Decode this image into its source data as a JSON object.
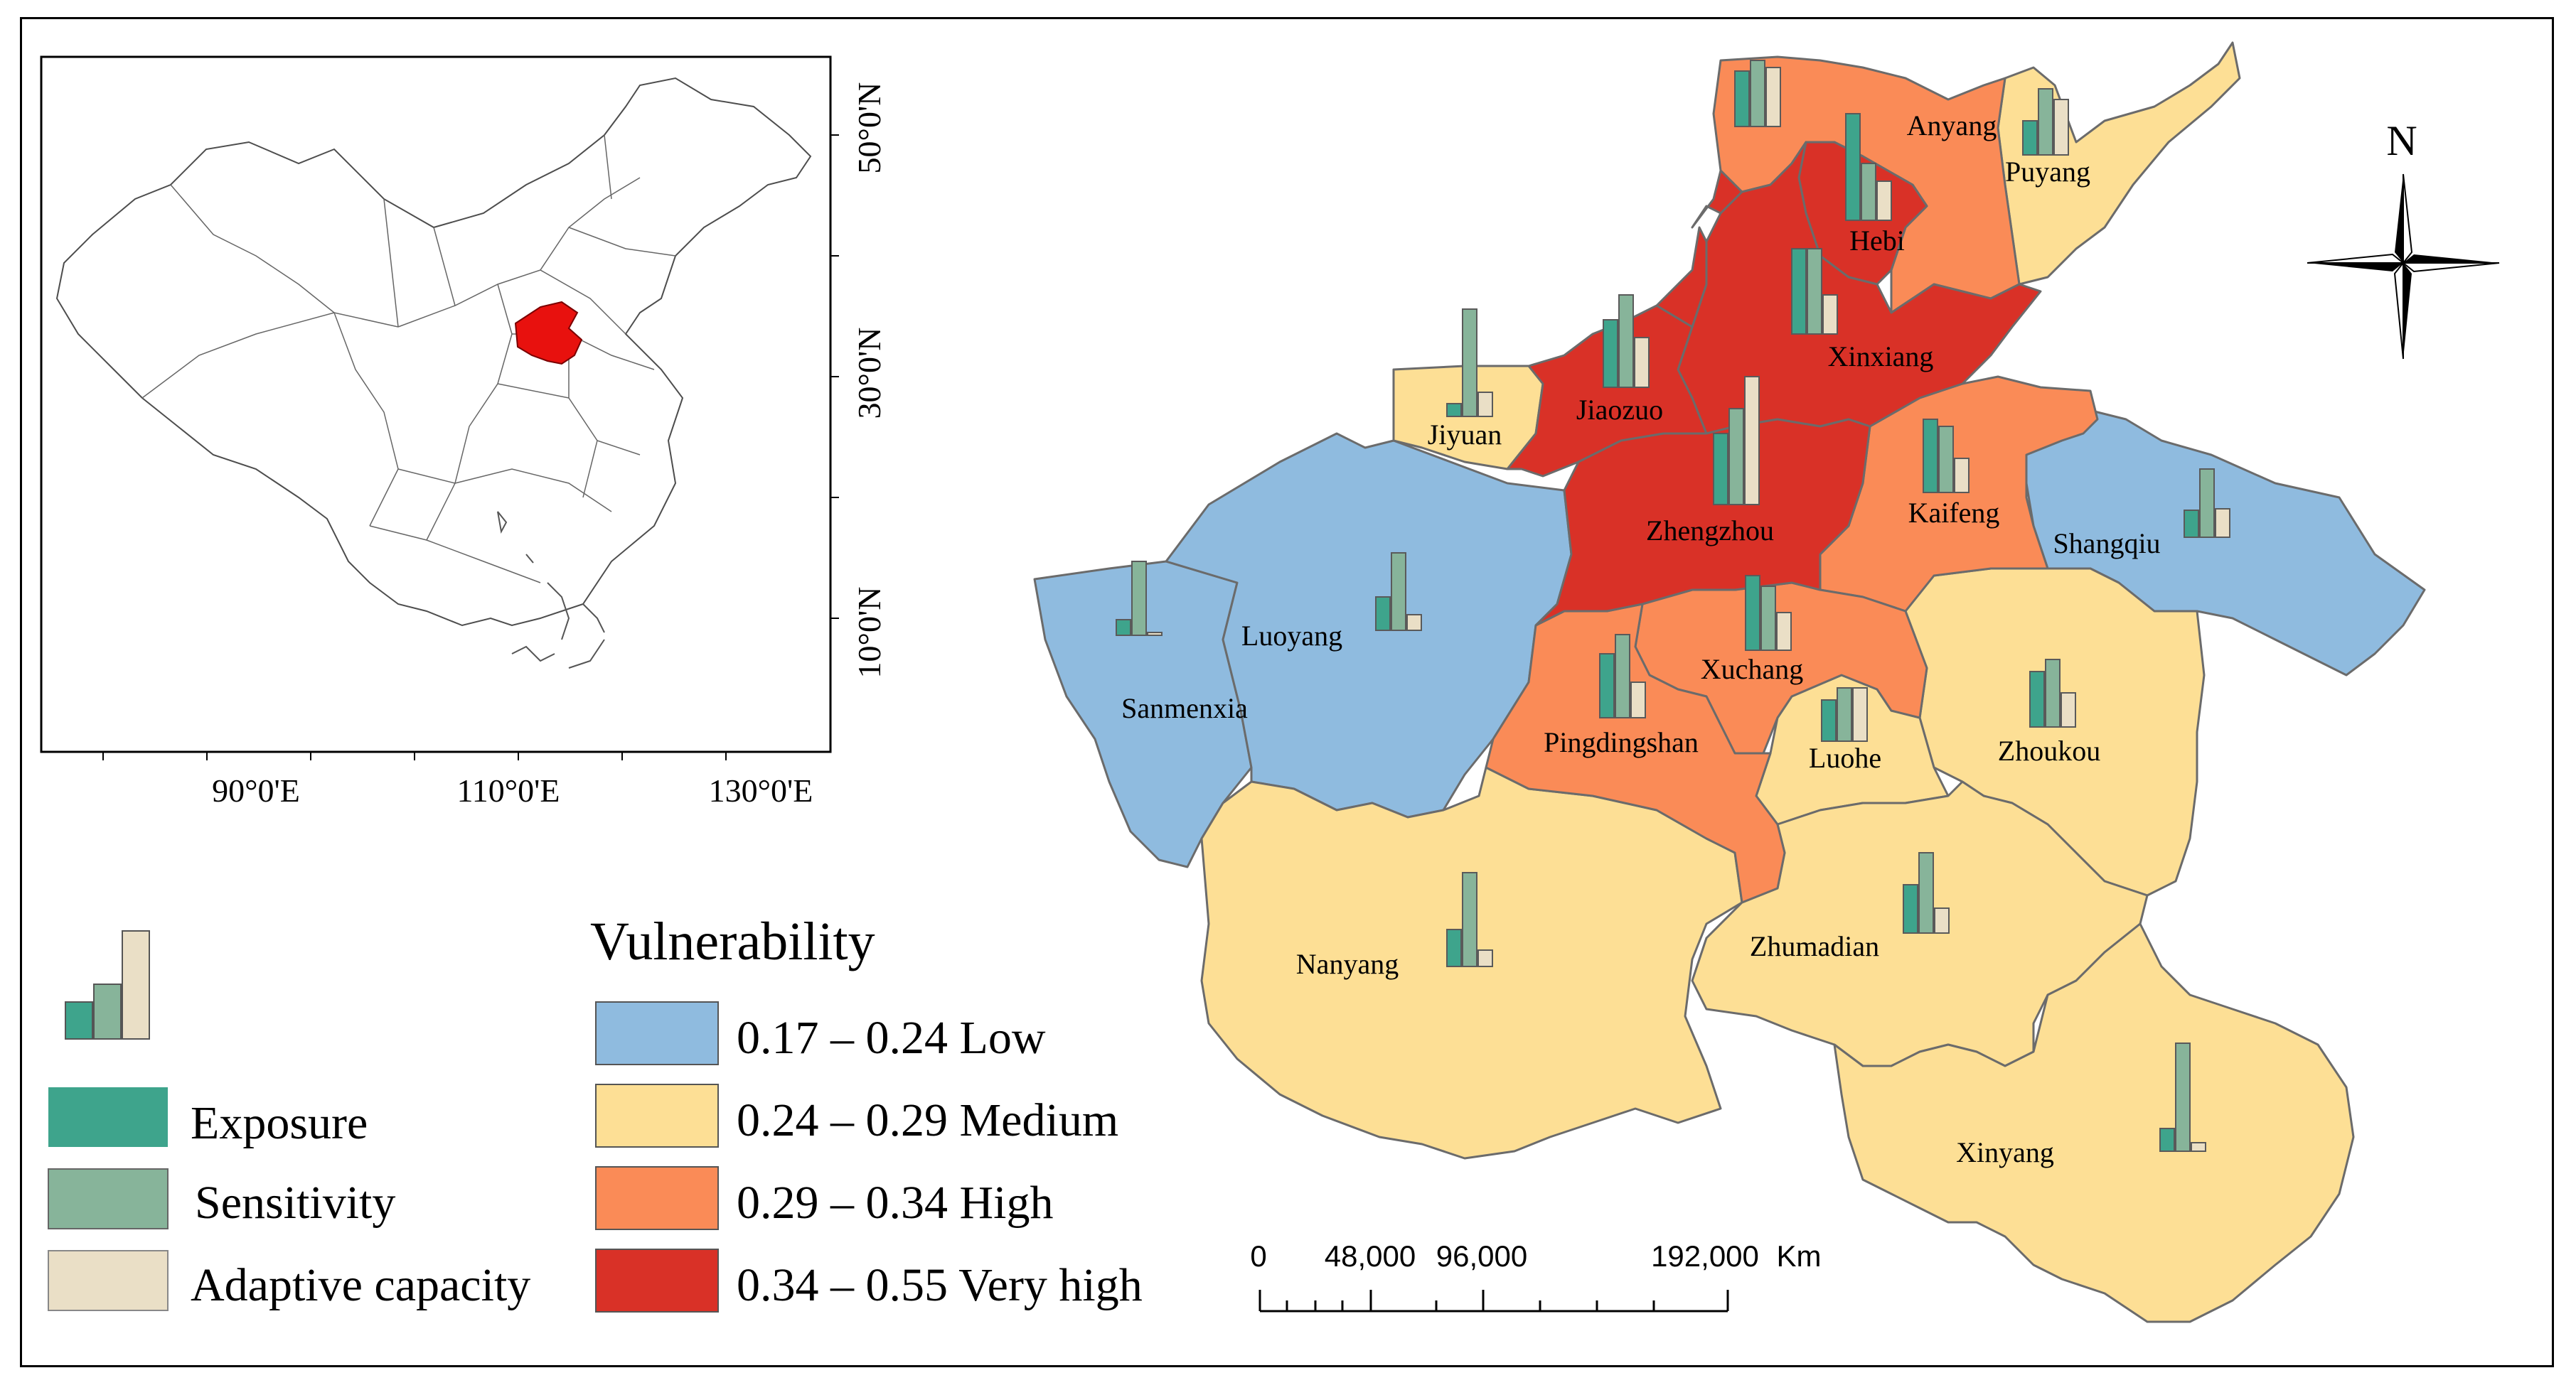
{
  "colors": {
    "low": "#8fbbdf",
    "medium": "#fddf95",
    "high": "#fa8b57",
    "very_high": "#d93127",
    "exposure": "#3ea48c",
    "sensitivity": "#87b49a",
    "adaptive": "#eadfc6",
    "highlight": "#e8110e"
  },
  "inset": {
    "lat_labels": [
      "50°0'N",
      "30°0'N",
      "10°0'N"
    ],
    "lon_labels": [
      "90°0'E",
      "110°0'E",
      "130°0'E"
    ]
  },
  "legend": {
    "exposure": "Exposure",
    "sensitivity": "Sensitivity",
    "adaptive": "Adaptive capacity"
  },
  "vulnerability": {
    "title": "Vulnerability",
    "classes": [
      {
        "key": "low",
        "label": "0.17 – 0.24 Low"
      },
      {
        "key": "medium",
        "label": "0.24 – 0.29 Medium"
      },
      {
        "key": "high",
        "label": "0.29 – 0.34 High"
      },
      {
        "key": "very_high",
        "label": "0.34 – 0.55 Very high"
      }
    ]
  },
  "scale_bar": {
    "ticks": [
      "0",
      "48,000",
      "96,000",
      "192,000"
    ],
    "unit": "Km"
  },
  "north_arrow": {
    "label": "N"
  },
  "cities": [
    {
      "name": "Anyang",
      "class": "high"
    },
    {
      "name": "Puyang",
      "class": "medium"
    },
    {
      "name": "Hebi",
      "class": "very_high"
    },
    {
      "name": "Xinxiang",
      "class": "very_high"
    },
    {
      "name": "Jiyuan",
      "class": "medium"
    },
    {
      "name": "Jiaozuo",
      "class": "very_high"
    },
    {
      "name": "Zhengzhou",
      "class": "very_high"
    },
    {
      "name": "Kaifeng",
      "class": "high"
    },
    {
      "name": "Shangqiu",
      "class": "low"
    },
    {
      "name": "Luoyang",
      "class": "low"
    },
    {
      "name": "Sanmenxia",
      "class": "low"
    },
    {
      "name": "Xuchang",
      "class": "high"
    },
    {
      "name": "Pingdingshan",
      "class": "high"
    },
    {
      "name": "Luohe",
      "class": "medium"
    },
    {
      "name": "Zhoukou",
      "class": "medium"
    },
    {
      "name": "Nanyang",
      "class": "medium"
    },
    {
      "name": "Zhumadian",
      "class": "medium"
    },
    {
      "name": "Xinyang",
      "class": "medium"
    }
  ]
}
